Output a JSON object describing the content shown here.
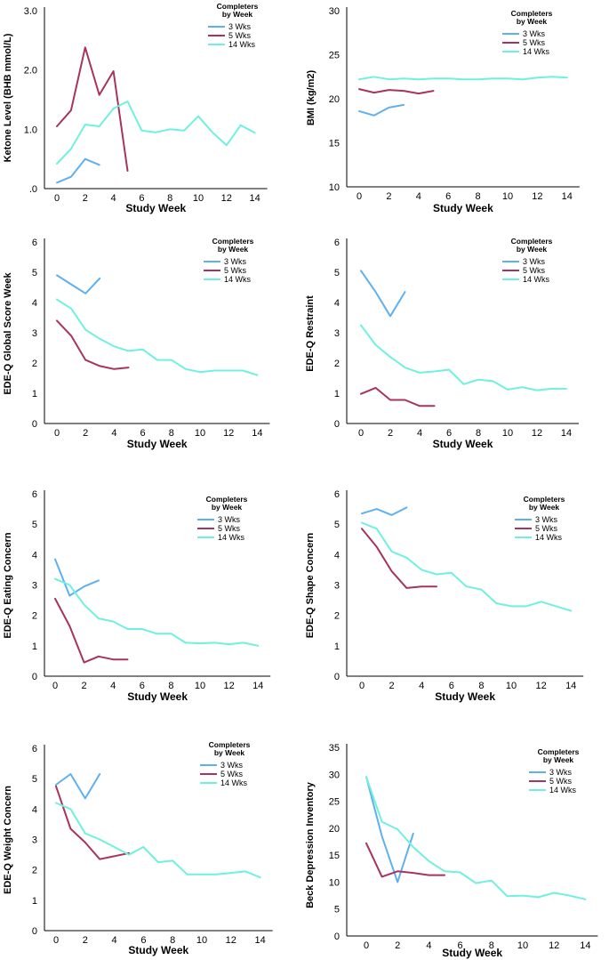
{
  "legend": {
    "title_line1": "Completers",
    "title_line2": "by Week"
  },
  "colors": {
    "3 Wks": "#5fb0ef",
    "5 Wks": "#a7345e",
    "14 Wks": "#6ff0e0"
  },
  "chart_data": [
    {
      "type": "line",
      "xlabel": "Study Week",
      "ylabel": "Ketone Level (BHB mmol/L)",
      "x_ticks": [
        "0",
        "2",
        "4",
        "6",
        "8",
        "10",
        "12",
        "14"
      ],
      "y_ticks": [
        ".0",
        "1.0",
        "2.0",
        "3.0"
      ],
      "ylim": [
        0,
        3.0
      ],
      "series": [
        {
          "name": "3 Wks",
          "x": [
            0,
            1,
            2,
            3
          ],
          "values": [
            0.1,
            0.2,
            0.5,
            0.4
          ]
        },
        {
          "name": "5 Wks",
          "x": [
            0,
            1,
            2,
            3,
            4,
            5
          ],
          "values": [
            1.05,
            1.32,
            2.38,
            1.58,
            1.98,
            0.3
          ]
        },
        {
          "name": "14 Wks",
          "x": [
            0,
            1,
            2,
            3,
            4,
            5,
            6,
            7,
            8,
            9,
            10,
            11,
            12,
            13,
            14
          ],
          "values": [
            0.42,
            0.67,
            1.08,
            1.05,
            1.35,
            1.47,
            0.98,
            0.95,
            1.0,
            0.98,
            1.22,
            0.95,
            0.73,
            1.07,
            0.94
          ]
        }
      ]
    },
    {
      "type": "line",
      "xlabel": "Study Week",
      "ylabel": "BMI (kg/m2)",
      "x_ticks": [
        "0",
        "2",
        "4",
        "6",
        "8",
        "10",
        "12",
        "14"
      ],
      "y_ticks": [
        "10",
        "15",
        "20",
        "25",
        "30"
      ],
      "ylim": [
        10,
        30
      ],
      "series": [
        {
          "name": "3 Wks",
          "x": [
            0,
            1,
            2,
            3
          ],
          "values": [
            18.6,
            18.1,
            19.0,
            19.3
          ]
        },
        {
          "name": "5 Wks",
          "x": [
            0,
            1,
            2,
            3,
            4,
            5
          ],
          "values": [
            21.1,
            20.7,
            21.0,
            20.9,
            20.6,
            20.9
          ]
        },
        {
          "name": "14 Wks",
          "x": [
            0,
            1,
            2,
            3,
            4,
            5,
            6,
            7,
            8,
            9,
            10,
            11,
            12,
            13,
            14
          ],
          "values": [
            22.2,
            22.5,
            22.2,
            22.3,
            22.2,
            22.3,
            22.3,
            22.2,
            22.2,
            22.3,
            22.3,
            22.2,
            22.4,
            22.5,
            22.4
          ]
        }
      ]
    },
    {
      "type": "line",
      "xlabel": "Study Week",
      "ylabel": "EDE-Q Global Score Week",
      "x_ticks": [
        "0",
        "2",
        "4",
        "6",
        "8",
        "10",
        "12",
        "14"
      ],
      "y_ticks": [
        "0",
        "1",
        "2",
        "3",
        "4",
        "5",
        "6"
      ],
      "ylim": [
        0,
        6
      ],
      "series": [
        {
          "name": "3 Wks",
          "x": [
            0,
            1,
            2,
            3
          ],
          "values": [
            4.9,
            4.6,
            4.3,
            4.8
          ]
        },
        {
          "name": "5 Wks",
          "x": [
            0,
            1,
            2,
            3,
            4,
            5
          ],
          "values": [
            3.4,
            2.9,
            2.1,
            1.9,
            1.8,
            1.85
          ]
        },
        {
          "name": "14 Wks",
          "x": [
            0,
            1,
            2,
            3,
            4,
            5,
            6,
            7,
            8,
            9,
            10,
            11,
            12,
            13,
            14
          ],
          "values": [
            4.1,
            3.8,
            3.1,
            2.8,
            2.55,
            2.4,
            2.45,
            2.1,
            2.1,
            1.8,
            1.7,
            1.75,
            1.75,
            1.75,
            1.6
          ]
        }
      ]
    },
    {
      "type": "line",
      "xlabel": "Study Week",
      "ylabel": "EDE-Q Restraint",
      "x_ticks": [
        "0",
        "2",
        "4",
        "6",
        "8",
        "10",
        "12",
        "14"
      ],
      "y_ticks": [
        "0",
        "1",
        "2",
        "3",
        "4",
        "5",
        "6"
      ],
      "ylim": [
        0,
        6
      ],
      "series": [
        {
          "name": "3 Wks",
          "x": [
            0,
            1,
            2,
            3
          ],
          "values": [
            5.05,
            4.35,
            3.55,
            4.35
          ]
        },
        {
          "name": "5 Wks",
          "x": [
            0,
            1,
            2,
            3,
            4,
            5
          ],
          "values": [
            0.98,
            1.18,
            0.78,
            0.78,
            0.58,
            0.58
          ]
        },
        {
          "name": "14 Wks",
          "x": [
            0,
            1,
            2,
            3,
            4,
            5,
            6,
            7,
            8,
            9,
            10,
            11,
            12,
            13,
            14
          ],
          "values": [
            3.25,
            2.6,
            2.2,
            1.85,
            1.68,
            1.72,
            1.78,
            1.3,
            1.45,
            1.4,
            1.12,
            1.2,
            1.1,
            1.15,
            1.15
          ]
        }
      ]
    },
    {
      "type": "line",
      "xlabel": "Study Week",
      "ylabel": "EDE-Q Eating Concern",
      "x_ticks": [
        "0",
        "2",
        "4",
        "6",
        "8",
        "10",
        "12",
        "14"
      ],
      "y_ticks": [
        "0",
        "1",
        "2",
        "3",
        "4",
        "5",
        "6"
      ],
      "ylim": [
        0,
        6
      ],
      "series": [
        {
          "name": "3 Wks",
          "x": [
            0,
            1,
            2,
            3
          ],
          "values": [
            3.85,
            2.65,
            2.95,
            3.15
          ]
        },
        {
          "name": "5 Wks",
          "x": [
            0,
            1,
            2,
            3,
            4,
            5
          ],
          "values": [
            2.55,
            1.65,
            0.45,
            0.65,
            0.55,
            0.55
          ]
        },
        {
          "name": "14 Wks",
          "x": [
            0,
            1,
            2,
            3,
            4,
            5,
            6,
            7,
            8,
            9,
            10,
            11,
            12,
            13,
            14
          ],
          "values": [
            3.2,
            3.0,
            2.35,
            1.9,
            1.8,
            1.55,
            1.55,
            1.4,
            1.4,
            1.1,
            1.08,
            1.1,
            1.05,
            1.1,
            1.0
          ]
        }
      ]
    },
    {
      "type": "line",
      "xlabel": "Study Week",
      "ylabel": "EDE-Q Shape Concern",
      "x_ticks": [
        "0",
        "2",
        "4",
        "6",
        "8",
        "10",
        "12",
        "14"
      ],
      "y_ticks": [
        "0",
        "1",
        "2",
        "3",
        "4",
        "5",
        "6"
      ],
      "ylim": [
        0,
        6
      ],
      "series": [
        {
          "name": "3 Wks",
          "x": [
            0,
            1,
            2,
            3
          ],
          "values": [
            5.35,
            5.5,
            5.3,
            5.55
          ]
        },
        {
          "name": "5 Wks",
          "x": [
            0,
            1,
            2,
            3,
            4,
            5
          ],
          "values": [
            4.85,
            4.25,
            3.45,
            2.9,
            2.95,
            2.95
          ]
        },
        {
          "name": "14 Wks",
          "x": [
            0,
            1,
            2,
            3,
            4,
            5,
            6,
            7,
            8,
            9,
            10,
            11,
            12,
            13,
            14
          ],
          "values": [
            5.05,
            4.85,
            4.1,
            3.9,
            3.5,
            3.35,
            3.4,
            2.95,
            2.85,
            2.4,
            2.3,
            2.3,
            2.45,
            2.3,
            2.15
          ]
        }
      ]
    },
    {
      "type": "line",
      "xlabel": "Study Week",
      "ylabel": "EDE-Q Weight Concern",
      "x_ticks": [
        "0",
        "2",
        "4",
        "6",
        "8",
        "10",
        "12",
        "14"
      ],
      "y_ticks": [
        "0",
        "1",
        "2",
        "3",
        "4",
        "5",
        "6"
      ],
      "ylim": [
        0,
        6
      ],
      "series": [
        {
          "name": "3 Wks",
          "x": [
            0,
            1,
            2,
            3
          ],
          "values": [
            4.8,
            5.15,
            4.35,
            5.15
          ]
        },
        {
          "name": "5 Wks",
          "x": [
            0,
            1,
            2,
            3,
            4,
            5
          ],
          "values": [
            4.75,
            3.35,
            2.9,
            2.35,
            2.45,
            2.55
          ]
        },
        {
          "name": "14 Wks",
          "x": [
            0,
            1,
            2,
            3,
            4,
            5,
            6,
            7,
            8,
            9,
            10,
            11,
            12,
            13,
            14
          ],
          "values": [
            4.2,
            4.0,
            3.2,
            3.0,
            2.75,
            2.5,
            2.75,
            2.25,
            2.3,
            1.85,
            1.85,
            1.85,
            1.9,
            1.95,
            1.75
          ]
        }
      ]
    },
    {
      "type": "line",
      "xlabel": "Study Week",
      "ylabel": "Beck Depression Inventory",
      "x_ticks": [
        "0",
        "2",
        "4",
        "6",
        "8",
        "10",
        "12",
        "14"
      ],
      "y_ticks": [
        "0",
        "5",
        "10",
        "15",
        "20",
        "25",
        "30",
        "35"
      ],
      "ylim": [
        0,
        35
      ],
      "series": [
        {
          "name": "3 Wks",
          "x": [
            0,
            1,
            2,
            3
          ],
          "values": [
            29.5,
            18.5,
            10.0,
            19.0
          ]
        },
        {
          "name": "5 Wks",
          "x": [
            0,
            1,
            2,
            3,
            4,
            5
          ],
          "values": [
            17.2,
            11.0,
            12.0,
            11.7,
            11.3,
            11.3
          ]
        },
        {
          "name": "14 Wks",
          "x": [
            0,
            1,
            2,
            3,
            4,
            5,
            6,
            7,
            8,
            9,
            10,
            11,
            12,
            13,
            14
          ],
          "values": [
            29.5,
            21.2,
            19.8,
            16.5,
            13.9,
            12.0,
            11.8,
            9.8,
            10.3,
            7.4,
            7.5,
            7.2,
            8.0,
            7.5,
            6.8
          ]
        }
      ]
    }
  ]
}
